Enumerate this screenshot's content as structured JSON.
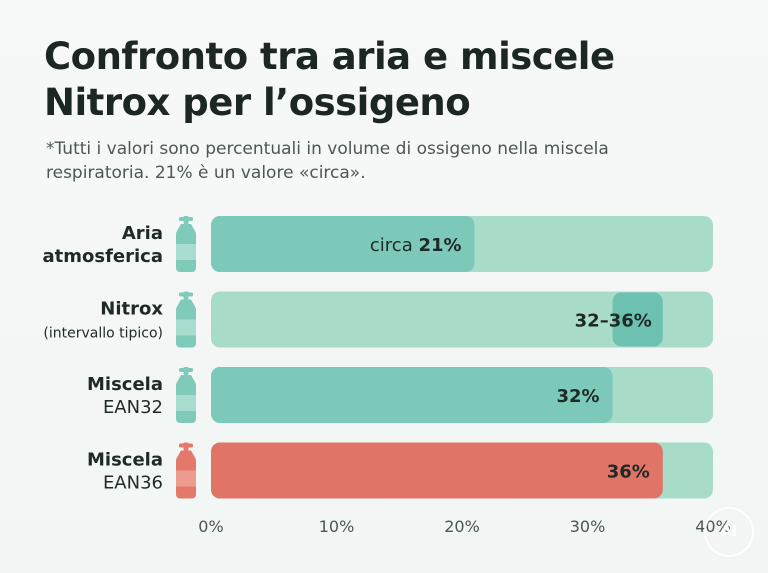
{
  "title": "Confronto tra aria e miscele Nitrox per l’ossigeno",
  "subtitle": "*Tutti i valori sono percentuali in volume di ossigeno nella miscela respiratoria. 21% è un valore «circa».",
  "colors": {
    "track": "#a8dcc8",
    "teal_fill": "#7dc9b9",
    "teal_dark": "#6dc1b0",
    "red_fill": "#e07567",
    "red_track": "#a8dcc8",
    "icon_teal": "#7fcab9",
    "icon_red": "#e3786b"
  },
  "chart_data": {
    "type": "bar",
    "orientation": "horizontal",
    "xlim": [
      0,
      40
    ],
    "x_ticks": [
      "0%",
      "10%",
      "20%",
      "30%",
      "40%"
    ],
    "grid": false,
    "legend": "none",
    "bars": [
      {
        "label_line1": "Aria",
        "label_line2": "atmosferica",
        "value": 21,
        "data_label_prefix": "circa ",
        "data_label": "21%",
        "color": "teal",
        "icon": "gas-cylinder-icon"
      },
      {
        "label_line1": "Nitrox",
        "label_line2": "(intervallo tipico)",
        "range": [
          32,
          36
        ],
        "data_label_prefix": "",
        "data_label": "32–36%",
        "color": "teal",
        "icon": "gas-cylinder-icon"
      },
      {
        "label_line1": "Miscela",
        "label_line2": "EAN32",
        "value": 32,
        "data_label_prefix": "",
        "data_label": "32%",
        "color": "teal",
        "icon": "gas-cylinder-icon"
      },
      {
        "label_line1": "Miscela",
        "label_line2": "EAN36",
        "value": 36,
        "data_label_prefix": "",
        "data_label": "36%",
        "color": "red",
        "icon": "gas-cylinder-icon"
      }
    ]
  },
  "watermark": "AI"
}
